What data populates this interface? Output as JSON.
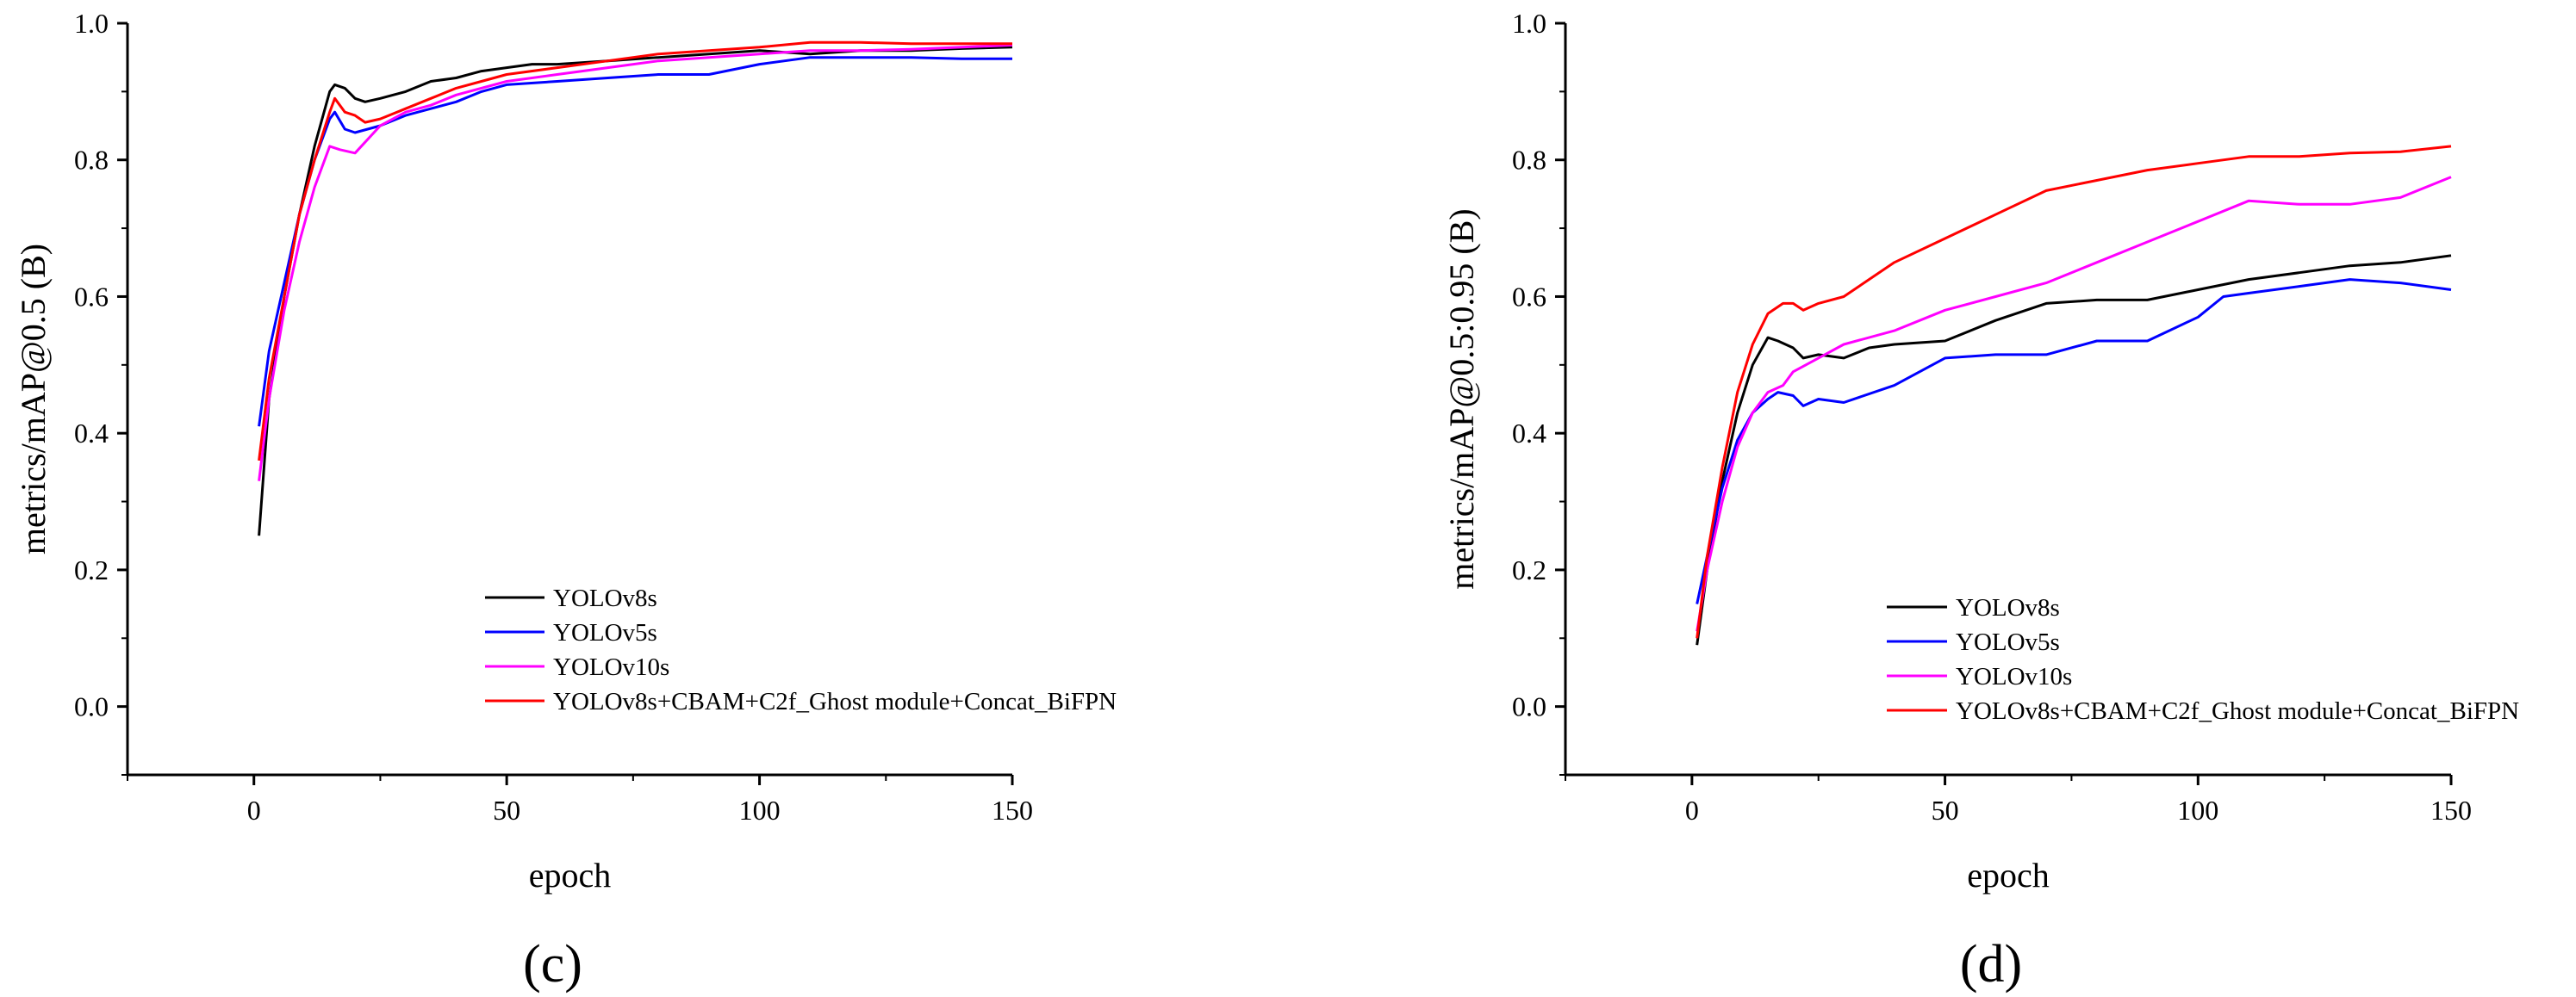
{
  "chart_data": [
    {
      "type": "line",
      "panel_label": "(c)",
      "xlabel": "epoch",
      "ylabel": "metrics/mAP@0.5 (B)",
      "xlim": [
        -25,
        150
      ],
      "ylim": [
        -0.1,
        1.0
      ],
      "x_ticks": [
        0,
        50,
        100,
        150
      ],
      "y_ticks": [
        0.0,
        0.2,
        0.4,
        0.6,
        0.8,
        1.0
      ],
      "x_tick_labels": [
        "0",
        "50",
        "100",
        "150"
      ],
      "y_tick_labels": [
        "0.0",
        "0.2",
        "0.4",
        "0.6",
        "0.8",
        "1.0"
      ],
      "grid": false,
      "legend": "bottom-center",
      "series": [
        {
          "name": "YOLOv8s",
          "color": "#000000",
          "x": [
            1,
            3,
            6,
            9,
            12,
            15,
            16,
            18,
            20,
            22,
            25,
            30,
            35,
            40,
            45,
            50,
            55,
            60,
            70,
            80,
            90,
            100,
            110,
            120,
            130,
            140,
            150
          ],
          "y": [
            0.25,
            0.45,
            0.6,
            0.72,
            0.82,
            0.9,
            0.91,
            0.905,
            0.89,
            0.885,
            0.89,
            0.9,
            0.915,
            0.92,
            0.93,
            0.935,
            0.94,
            0.94,
            0.945,
            0.95,
            0.955,
            0.96,
            0.955,
            0.96,
            0.96,
            0.963,
            0.965
          ]
        },
        {
          "name": "YOLOv5s",
          "color": "#0000ff",
          "x": [
            1,
            3,
            6,
            9,
            12,
            15,
            16,
            18,
            20,
            25,
            30,
            35,
            40,
            45,
            50,
            60,
            70,
            80,
            90,
            100,
            110,
            120,
            130,
            140,
            150
          ],
          "y": [
            0.41,
            0.52,
            0.62,
            0.72,
            0.8,
            0.86,
            0.87,
            0.845,
            0.84,
            0.85,
            0.865,
            0.875,
            0.885,
            0.9,
            0.91,
            0.915,
            0.92,
            0.925,
            0.925,
            0.94,
            0.95,
            0.95,
            0.95,
            0.948,
            0.948
          ]
        },
        {
          "name": "YOLOv10s",
          "color": "#ff00ff",
          "x": [
            1,
            3,
            6,
            9,
            12,
            15,
            17,
            20,
            25,
            30,
            35,
            40,
            50,
            60,
            70,
            80,
            90,
            100,
            110,
            120,
            130,
            140,
            150
          ],
          "y": [
            0.33,
            0.45,
            0.58,
            0.68,
            0.76,
            0.82,
            0.815,
            0.81,
            0.85,
            0.87,
            0.88,
            0.895,
            0.915,
            0.925,
            0.935,
            0.945,
            0.95,
            0.955,
            0.96,
            0.96,
            0.962,
            0.965,
            0.968
          ]
        },
        {
          "name": "YOLOv8s+CBAM+C2f_Ghost module+Concat_BiFPN",
          "color": "#ff0000",
          "x": [
            1,
            3,
            6,
            9,
            12,
            15,
            16,
            18,
            20,
            22,
            25,
            30,
            35,
            40,
            45,
            50,
            60,
            70,
            80,
            90,
            100,
            110,
            120,
            130,
            140,
            150
          ],
          "y": [
            0.36,
            0.48,
            0.6,
            0.72,
            0.8,
            0.87,
            0.89,
            0.87,
            0.865,
            0.855,
            0.86,
            0.875,
            0.89,
            0.905,
            0.915,
            0.925,
            0.935,
            0.945,
            0.955,
            0.96,
            0.965,
            0.972,
            0.972,
            0.97,
            0.97,
            0.97
          ]
        }
      ]
    },
    {
      "type": "line",
      "panel_label": "(d)",
      "xlabel": "epoch",
      "ylabel": "metrics/mAP@0.5:0.95 (B)",
      "xlim": [
        -25,
        150
      ],
      "ylim": [
        -0.1,
        1.0
      ],
      "x_ticks": [
        0,
        50,
        100,
        150
      ],
      "y_ticks": [
        0.0,
        0.2,
        0.4,
        0.6,
        0.8,
        1.0
      ],
      "x_tick_labels": [
        "0",
        "50",
        "100",
        "150"
      ],
      "y_tick_labels": [
        "0.0",
        "0.2",
        "0.4",
        "0.6",
        "0.8",
        "1.0"
      ],
      "grid": false,
      "legend": "bottom-right",
      "series": [
        {
          "name": "YOLOv8s",
          "color": "#000000",
          "x": [
            1,
            3,
            6,
            9,
            12,
            15,
            17,
            20,
            22,
            25,
            30,
            35,
            40,
            50,
            60,
            70,
            80,
            90,
            100,
            110,
            120,
            130,
            140,
            150
          ],
          "y": [
            0.09,
            0.2,
            0.33,
            0.43,
            0.5,
            0.54,
            0.535,
            0.525,
            0.51,
            0.515,
            0.51,
            0.525,
            0.53,
            0.535,
            0.565,
            0.59,
            0.595,
            0.595,
            0.61,
            0.625,
            0.635,
            0.645,
            0.65,
            0.66
          ]
        },
        {
          "name": "YOLOv5s",
          "color": "#0000ff",
          "x": [
            1,
            3,
            6,
            9,
            12,
            15,
            17,
            20,
            22,
            25,
            30,
            40,
            50,
            60,
            70,
            80,
            90,
            100,
            105,
            110,
            120,
            130,
            140,
            150
          ],
          "y": [
            0.15,
            0.22,
            0.32,
            0.39,
            0.43,
            0.45,
            0.46,
            0.455,
            0.44,
            0.45,
            0.445,
            0.47,
            0.51,
            0.515,
            0.515,
            0.535,
            0.535,
            0.57,
            0.6,
            0.605,
            0.615,
            0.625,
            0.62,
            0.61
          ]
        },
        {
          "name": "YOLOv10s",
          "color": "#ff00ff",
          "x": [
            1,
            3,
            6,
            9,
            12,
            15,
            18,
            20,
            25,
            30,
            40,
            50,
            60,
            70,
            80,
            90,
            100,
            110,
            120,
            130,
            140,
            150
          ],
          "y": [
            0.11,
            0.2,
            0.3,
            0.38,
            0.43,
            0.46,
            0.47,
            0.49,
            0.51,
            0.53,
            0.55,
            0.58,
            0.6,
            0.62,
            0.65,
            0.68,
            0.71,
            0.74,
            0.735,
            0.735,
            0.745,
            0.775
          ]
        },
        {
          "name": "YOLOv8s+CBAM+C2f_Ghost module+Concat_BiFPN",
          "color": "#ff0000",
          "x": [
            1,
            3,
            6,
            9,
            12,
            15,
            18,
            20,
            22,
            25,
            30,
            40,
            50,
            60,
            70,
            80,
            90,
            100,
            110,
            120,
            130,
            140,
            150
          ],
          "y": [
            0.1,
            0.22,
            0.35,
            0.46,
            0.53,
            0.575,
            0.59,
            0.59,
            0.58,
            0.59,
            0.6,
            0.65,
            0.685,
            0.72,
            0.755,
            0.77,
            0.785,
            0.795,
            0.805,
            0.805,
            0.81,
            0.812,
            0.82
          ]
        }
      ]
    }
  ]
}
